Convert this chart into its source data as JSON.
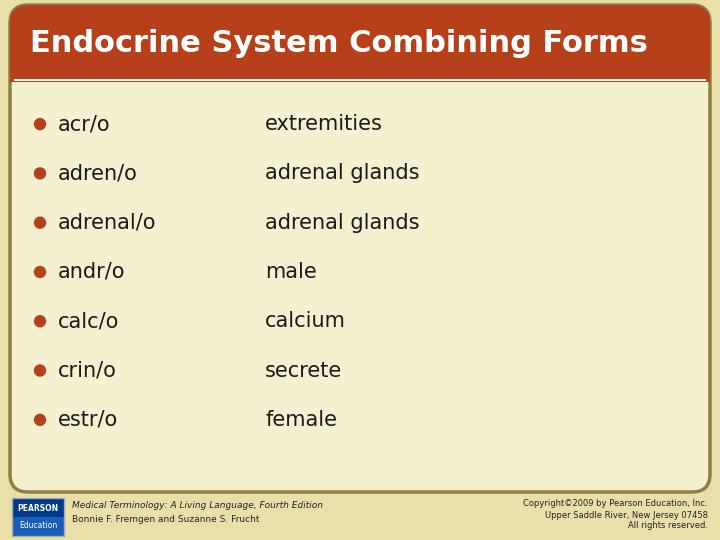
{
  "title": "Endocrine System Combining Forms",
  "title_bg_color": "#b5401a",
  "title_text_color": "#ffffff",
  "slide_bg_color": "#f5f0d0",
  "outer_bg_color": "#e8e0a8",
  "border_color": "#8b8040",
  "bullet_color": "#b5401a",
  "text_color": "#1a1a1a",
  "items": [
    {
      "term": "acr/o",
      "definition": "extremities"
    },
    {
      "term": "adren/o",
      "definition": "adrenal glands"
    },
    {
      "term": "adrenal/o",
      "definition": "adrenal glands"
    },
    {
      "term": "andr/o",
      "definition": "male"
    },
    {
      "term": "calc/o",
      "definition": "calcium"
    },
    {
      "term": "crin/o",
      "definition": "secrete"
    },
    {
      "term": "estr/o",
      "definition": "female"
    }
  ],
  "footer_left_line1": "Medical Terminology: A Living Language, Fourth Edition",
  "footer_left_line2": "Bonnie F. Fremgen and Suzanne S. Frucht",
  "footer_right_line1": "Copyright©2009 by Pearson Education, Inc.",
  "footer_right_line2": "Upper Saddle River, New Jersey 07458",
  "footer_right_line3": "All rights reserved.",
  "pearson_box_color": "#003087"
}
